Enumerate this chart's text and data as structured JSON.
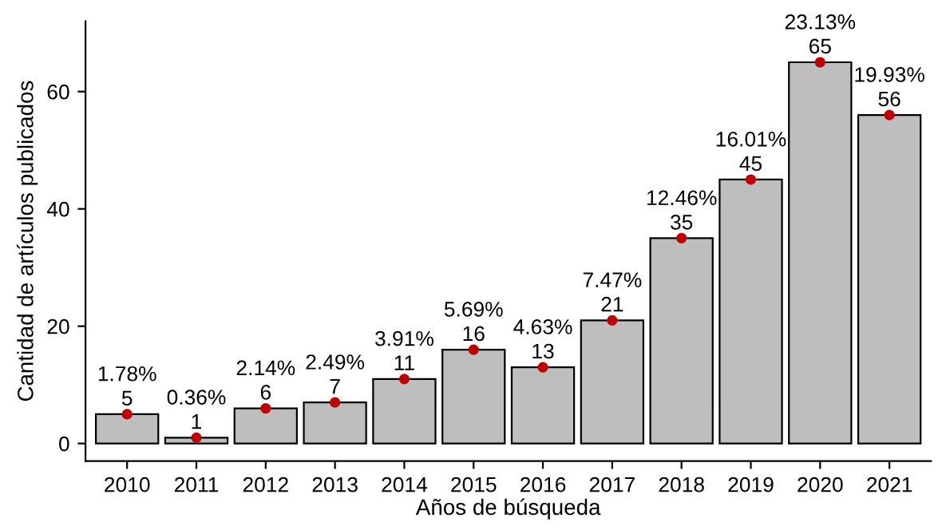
{
  "chart_data": {
    "type": "bar",
    "xlabel": "Años de búsqueda",
    "ylabel": "Cantidad de artículos publicados",
    "categories": [
      "2010",
      "2011",
      "2012",
      "2013",
      "2014",
      "2015",
      "2016",
      "2017",
      "2018",
      "2019",
      "2020",
      "2021"
    ],
    "series": [
      {
        "color": "#bebebe",
        "values": [
          5,
          1,
          6,
          7,
          11,
          16,
          13,
          21,
          35,
          45,
          65,
          56
        ],
        "value_labels": [
          "5",
          "1",
          "6",
          "7",
          "11",
          "16",
          "13",
          "21",
          "35",
          "45",
          "65",
          "56"
        ]
      },
      {
        "type": "scatter",
        "color": "#c00000",
        "values": [
          5,
          1,
          6,
          7,
          11,
          16,
          13,
          21,
          35,
          45,
          65,
          56
        ]
      }
    ],
    "annotations": [
      {
        "text": "1.78%",
        "x": "2010",
        "y": 5
      },
      {
        "text": "0.36%",
        "x": "2011",
        "y": 1
      },
      {
        "text": "2.14%",
        "x": "2012",
        "y": 6
      },
      {
        "text": "2.49%",
        "x": "2013",
        "y": 7
      },
      {
        "text": "3.91%",
        "x": "2014",
        "y": 11
      },
      {
        "text": "5.69%",
        "x": "2015",
        "y": 16
      },
      {
        "text": "4.63%",
        "x": "2016",
        "y": 13
      },
      {
        "text": "7.47%",
        "x": "2017",
        "y": 21
      },
      {
        "text": "12.46%",
        "x": "2018",
        "y": 35
      },
      {
        "text": "16.01%",
        "x": "2019",
        "y": 45
      },
      {
        "text": "23.13%",
        "x": "2020",
        "y": 65
      },
      {
        "text": "19.93%",
        "x": "2021",
        "y": 56
      }
    ],
    "ylim": [
      -3,
      72
    ],
    "yticks": [
      0,
      20,
      40,
      60
    ],
    "grid": false
  }
}
